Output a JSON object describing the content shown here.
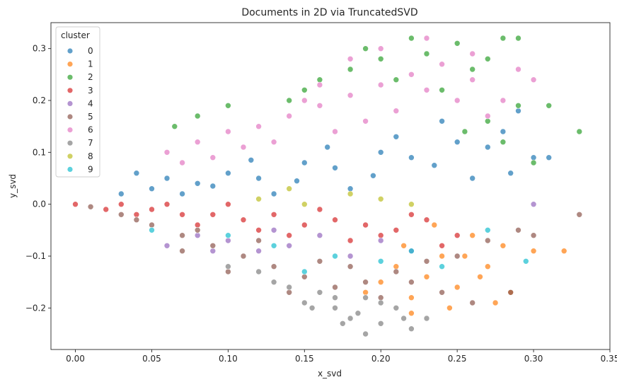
{
  "chart_data": {
    "type": "scatter",
    "title": "Documents in 2D via TruncatedSVD",
    "xlabel": "x_svd",
    "ylabel": "y_svd",
    "xlim": [
      -0.016,
      0.35
    ],
    "ylim": [
      -0.28,
      0.35
    ],
    "xticks": [
      0.0,
      0.05,
      0.1,
      0.15,
      0.2,
      0.25,
      0.3,
      0.35
    ],
    "xtick_labels": [
      "0.00",
      "0.05",
      "0.10",
      "0.15",
      "0.20",
      "0.25",
      "0.30",
      "0.35"
    ],
    "yticks": [
      -0.2,
      -0.1,
      0.0,
      0.1,
      0.2,
      0.3
    ],
    "ytick_labels": [
      "−0.2",
      "−0.1",
      "0.0",
      "0.1",
      "0.2",
      "0.3"
    ],
    "grid": false,
    "legend": {
      "title": "cluster",
      "placement": "upper-left"
    },
    "marker_alpha": 0.7,
    "series": [
      {
        "name": "0",
        "color": "#1f77b4",
        "points": [
          [
            0.05,
            0.03
          ],
          [
            0.08,
            0.04
          ],
          [
            0.1,
            0.06
          ],
          [
            0.12,
            0.05
          ],
          [
            0.15,
            0.08
          ],
          [
            0.17,
            0.07
          ],
          [
            0.2,
            0.1
          ],
          [
            0.22,
            0.09
          ],
          [
            0.25,
            0.12
          ],
          [
            0.27,
            0.11
          ],
          [
            0.28,
            0.14
          ],
          [
            0.29,
            0.18
          ],
          [
            0.3,
            0.09
          ],
          [
            0.31,
            0.09
          ],
          [
            0.26,
            0.05
          ],
          [
            0.18,
            0.03
          ],
          [
            0.13,
            0.02
          ],
          [
            0.07,
            0.02
          ],
          [
            0.24,
            0.16
          ],
          [
            0.21,
            0.13
          ],
          [
            0.06,
            0.05
          ],
          [
            0.04,
            0.06
          ],
          [
            0.165,
            0.11
          ],
          [
            0.195,
            0.055
          ],
          [
            0.235,
            0.075
          ],
          [
            0.285,
            0.06
          ],
          [
            0.115,
            0.085
          ],
          [
            0.145,
            0.045
          ],
          [
            0.03,
            0.02
          ],
          [
            0.09,
            0.035
          ]
        ]
      },
      {
        "name": "1",
        "color": "#ff7f0e",
        "points": [
          [
            0.2,
            -0.15
          ],
          [
            0.22,
            -0.18
          ],
          [
            0.24,
            -0.1
          ],
          [
            0.25,
            -0.16
          ],
          [
            0.27,
            -0.12
          ],
          [
            0.28,
            -0.08
          ],
          [
            0.3,
            -0.09
          ],
          [
            0.32,
            -0.09
          ],
          [
            0.22,
            -0.21
          ],
          [
            0.23,
            -0.14
          ],
          [
            0.26,
            -0.06
          ],
          [
            0.21,
            -0.12
          ],
          [
            0.19,
            -0.17
          ],
          [
            0.245,
            -0.2
          ],
          [
            0.265,
            -0.14
          ],
          [
            0.285,
            -0.17
          ],
          [
            0.235,
            -0.04
          ],
          [
            0.255,
            -0.1
          ],
          [
            0.215,
            -0.08
          ],
          [
            0.275,
            -0.19
          ]
        ]
      },
      {
        "name": "2",
        "color": "#2ca02c",
        "points": [
          [
            0.22,
            0.32
          ],
          [
            0.25,
            0.31
          ],
          [
            0.28,
            0.32
          ],
          [
            0.2,
            0.28
          ],
          [
            0.18,
            0.26
          ],
          [
            0.16,
            0.24
          ],
          [
            0.15,
            0.22
          ],
          [
            0.14,
            0.2
          ],
          [
            0.23,
            0.29
          ],
          [
            0.26,
            0.26
          ],
          [
            0.27,
            0.28
          ],
          [
            0.29,
            0.19
          ],
          [
            0.31,
            0.19
          ],
          [
            0.33,
            0.14
          ],
          [
            0.1,
            0.19
          ],
          [
            0.08,
            0.17
          ],
          [
            0.065,
            0.15
          ],
          [
            0.24,
            0.22
          ],
          [
            0.27,
            0.16
          ],
          [
            0.29,
            0.32
          ],
          [
            0.21,
            0.24
          ],
          [
            0.19,
            0.3
          ],
          [
            0.255,
            0.14
          ],
          [
            0.28,
            0.12
          ],
          [
            0.3,
            0.08
          ]
        ]
      },
      {
        "name": "3",
        "color": "#d62728",
        "points": [
          [
            0.0,
            0.0
          ],
          [
            0.02,
            -0.01
          ],
          [
            0.03,
            0.0
          ],
          [
            0.05,
            -0.01
          ],
          [
            0.07,
            -0.02
          ],
          [
            0.09,
            -0.02
          ],
          [
            0.11,
            -0.03
          ],
          [
            0.13,
            -0.02
          ],
          [
            0.15,
            -0.04
          ],
          [
            0.17,
            -0.03
          ],
          [
            0.19,
            -0.04
          ],
          [
            0.21,
            -0.05
          ],
          [
            0.23,
            -0.03
          ],
          [
            0.25,
            -0.06
          ],
          [
            0.1,
            0.0
          ],
          [
            0.08,
            -0.04
          ],
          [
            0.14,
            -0.06
          ],
          [
            0.18,
            -0.07
          ],
          [
            0.22,
            -0.02
          ],
          [
            0.04,
            -0.02
          ],
          [
            0.06,
            0.0
          ],
          [
            0.12,
            -0.05
          ],
          [
            0.16,
            -0.01
          ],
          [
            0.2,
            -0.06
          ],
          [
            0.24,
            -0.08
          ]
        ]
      },
      {
        "name": "4",
        "color": "#9467bd",
        "points": [
          [
            0.06,
            -0.08
          ],
          [
            0.08,
            -0.06
          ],
          [
            0.1,
            -0.07
          ],
          [
            0.12,
            -0.09
          ],
          [
            0.14,
            -0.08
          ],
          [
            0.16,
            -0.06
          ],
          [
            0.18,
            -0.1
          ],
          [
            0.2,
            -0.07
          ],
          [
            0.3,
            0.0
          ],
          [
            0.22,
            -0.09
          ],
          [
            0.09,
            -0.09
          ],
          [
            0.13,
            -0.05
          ]
        ]
      },
      {
        "name": "5",
        "color": "#8c564b",
        "points": [
          [
            0.01,
            -0.005
          ],
          [
            0.03,
            -0.02
          ],
          [
            0.05,
            -0.04
          ],
          [
            0.07,
            -0.06
          ],
          [
            0.09,
            -0.08
          ],
          [
            0.11,
            -0.1
          ],
          [
            0.13,
            -0.12
          ],
          [
            0.15,
            -0.14
          ],
          [
            0.17,
            -0.16
          ],
          [
            0.19,
            -0.15
          ],
          [
            0.21,
            -0.13
          ],
          [
            0.23,
            -0.11
          ],
          [
            0.25,
            -0.1
          ],
          [
            0.27,
            -0.07
          ],
          [
            0.29,
            -0.05
          ],
          [
            0.3,
            -0.06
          ],
          [
            0.33,
            -0.02
          ],
          [
            0.07,
            -0.09
          ],
          [
            0.1,
            -0.13
          ],
          [
            0.14,
            -0.17
          ],
          [
            0.16,
            -0.11
          ],
          [
            0.12,
            -0.07
          ],
          [
            0.2,
            -0.18
          ],
          [
            0.24,
            -0.17
          ],
          [
            0.26,
            -0.19
          ],
          [
            0.285,
            -0.17
          ],
          [
            0.04,
            -0.03
          ],
          [
            0.08,
            -0.05
          ],
          [
            0.18,
            -0.12
          ],
          [
            0.22,
            -0.15
          ]
        ]
      },
      {
        "name": "6",
        "color": "#e377c2",
        "points": [
          [
            0.06,
            0.1
          ],
          [
            0.08,
            0.12
          ],
          [
            0.1,
            0.14
          ],
          [
            0.12,
            0.15
          ],
          [
            0.14,
            0.17
          ],
          [
            0.16,
            0.19
          ],
          [
            0.18,
            0.21
          ],
          [
            0.2,
            0.23
          ],
          [
            0.22,
            0.25
          ],
          [
            0.24,
            0.27
          ],
          [
            0.26,
            0.24
          ],
          [
            0.28,
            0.2
          ],
          [
            0.3,
            0.24
          ],
          [
            0.29,
            0.26
          ],
          [
            0.23,
            0.32
          ],
          [
            0.2,
            0.3
          ],
          [
            0.18,
            0.28
          ],
          [
            0.15,
            0.2
          ],
          [
            0.13,
            0.12
          ],
          [
            0.17,
            0.14
          ],
          [
            0.21,
            0.18
          ],
          [
            0.25,
            0.2
          ],
          [
            0.27,
            0.17
          ],
          [
            0.09,
            0.09
          ],
          [
            0.11,
            0.11
          ],
          [
            0.19,
            0.16
          ],
          [
            0.23,
            0.22
          ],
          [
            0.26,
            0.29
          ],
          [
            0.16,
            0.23
          ],
          [
            0.07,
            0.08
          ]
        ]
      },
      {
        "name": "7",
        "color": "#7f7f7f",
        "points": [
          [
            0.12,
            -0.13
          ],
          [
            0.14,
            -0.16
          ],
          [
            0.15,
            -0.19
          ],
          [
            0.17,
            -0.2
          ],
          [
            0.18,
            -0.22
          ],
          [
            0.19,
            -0.25
          ],
          [
            0.2,
            -0.23
          ],
          [
            0.21,
            -0.2
          ],
          [
            0.22,
            -0.24
          ],
          [
            0.23,
            -0.22
          ],
          [
            0.16,
            -0.17
          ],
          [
            0.13,
            -0.15
          ],
          [
            0.17,
            -0.18
          ],
          [
            0.185,
            -0.21
          ],
          [
            0.2,
            -0.19
          ],
          [
            0.215,
            -0.22
          ],
          [
            0.1,
            -0.12
          ],
          [
            0.155,
            -0.2
          ],
          [
            0.175,
            -0.23
          ],
          [
            0.19,
            -0.18
          ]
        ]
      },
      {
        "name": "8",
        "color": "#bcbd22",
        "points": [
          [
            0.12,
            0.01
          ],
          [
            0.15,
            0.0
          ],
          [
            0.18,
            0.02
          ],
          [
            0.2,
            0.01
          ],
          [
            0.14,
            0.03
          ],
          [
            0.22,
            0.0
          ]
        ]
      },
      {
        "name": "9",
        "color": "#17becf",
        "points": [
          [
            0.05,
            -0.05
          ],
          [
            0.1,
            -0.06
          ],
          [
            0.13,
            -0.08
          ],
          [
            0.17,
            -0.1
          ],
          [
            0.2,
            -0.11
          ],
          [
            0.24,
            -0.12
          ],
          [
            0.27,
            -0.05
          ],
          [
            0.295,
            -0.11
          ],
          [
            0.15,
            -0.13
          ],
          [
            0.22,
            -0.09
          ]
        ]
      }
    ]
  }
}
